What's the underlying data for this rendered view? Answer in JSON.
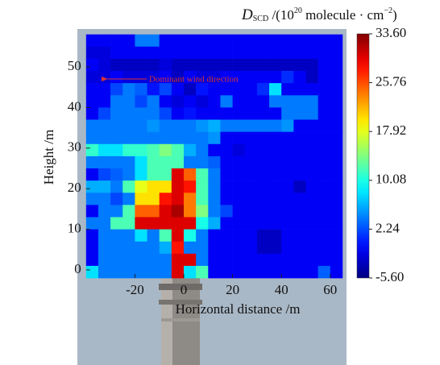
{
  "chart_data": {
    "type": "heatmap",
    "colorbar_label": [
      "D",
      "SCD",
      " /(10",
      "20",
      " molecule · cm",
      "−2",
      ")"
    ],
    "xlabel": "Horizontal distance /m",
    "ylabel": "Height /m",
    "annotation": "Dominant wind direction",
    "colormap": "jet",
    "x": [
      -37.5,
      -32.5,
      -27.5,
      -22.5,
      -17.5,
      -12.5,
      -7.5,
      -2.5,
      2.5,
      7.5,
      12.5,
      17.5,
      22.5,
      27.5,
      32.5,
      37.5,
      42.5,
      47.5,
      52.5,
      57.5,
      62.5
    ],
    "y": [
      56.5,
      53.5,
      50.5,
      47.5,
      44.5,
      41.5,
      38.5,
      35.5,
      32.5,
      29.5,
      26.5,
      23.5,
      20.5,
      17.5,
      14.5,
      11.5,
      8.5,
      5.5,
      2.5,
      -0.5
    ],
    "z": [
      [
        -1,
        -1,
        -1,
        -1,
        4,
        4,
        -1,
        -1,
        -1,
        -1,
        -1,
        -1,
        -1,
        -1,
        -1,
        -1,
        -1,
        -1,
        -1,
        -1,
        -1
      ],
      [
        -2,
        -2,
        -1,
        -1,
        -1,
        -1,
        -1,
        -1,
        -1,
        -1,
        -1,
        -1,
        -1,
        -1,
        -1,
        -1,
        -1,
        -1,
        -1,
        -1,
        -1
      ],
      [
        -1,
        -2,
        -3,
        -3,
        -3,
        -3,
        -2,
        -3,
        -3,
        -3,
        -3,
        -3,
        -3,
        -3,
        -3,
        -3,
        -3,
        -3,
        -3,
        -1,
        -1
      ],
      [
        -2,
        -2,
        -1,
        -2,
        -2,
        -2,
        -1,
        -3,
        -1,
        -2,
        -2,
        -1,
        -1,
        -1,
        -1,
        -1,
        1,
        -1,
        -3,
        -1,
        -1
      ],
      [
        -1,
        -1,
        2,
        4,
        3,
        0,
        2,
        -1,
        -3,
        0,
        -1,
        -1,
        -1,
        -1,
        1,
        8,
        -1,
        -1,
        -1,
        -1,
        -1
      ],
      [
        -1,
        -1,
        4,
        4,
        2,
        4,
        -1,
        -2,
        -1,
        -2,
        -1,
        4,
        -1,
        -1,
        -1,
        4,
        4,
        4,
        4,
        -1,
        -1
      ],
      [
        -1,
        2,
        4,
        4,
        4,
        4,
        2,
        -1,
        0,
        -1,
        -1,
        -1,
        -1,
        -1,
        -1,
        -1,
        4,
        4,
        4,
        -1,
        -1
      ],
      [
        4,
        4,
        4,
        4,
        4,
        5,
        4,
        4,
        4,
        5,
        6,
        4,
        4,
        4,
        4,
        4,
        5,
        -1,
        -1,
        -1,
        -1
      ],
      [
        4,
        4,
        4,
        4,
        4,
        4,
        4,
        4,
        4,
        4,
        5,
        -1,
        -1,
        -1,
        -1,
        -1,
        -1,
        -1,
        -1,
        -1,
        -1
      ],
      [
        11,
        8,
        8,
        11,
        11,
        12,
        14,
        12,
        6,
        4,
        -1,
        -1,
        -2,
        -1,
        -1,
        -1,
        -1,
        -1,
        -1,
        -1,
        -1
      ],
      [
        4,
        4,
        4,
        4,
        8,
        12,
        12,
        12,
        4,
        4,
        3,
        -1,
        -1,
        -1,
        -1,
        -1,
        -1,
        -1,
        -1,
        -1,
        -1
      ],
      [
        -1,
        2,
        3,
        4,
        8,
        12,
        12,
        30,
        25,
        12,
        4,
        -1,
        -1,
        -1,
        -1,
        -1,
        -1,
        -1,
        -1,
        -1,
        -1
      ],
      [
        6,
        6,
        4,
        12,
        18,
        20,
        20,
        30,
        28,
        12,
        4,
        -1,
        -1,
        -1,
        -1,
        -1,
        -1,
        -3,
        -1,
        -1,
        -1
      ],
      [
        4,
        4,
        2,
        4,
        20,
        20,
        28,
        30,
        24,
        12,
        4,
        -1,
        -1,
        -1,
        -1,
        -1,
        -1,
        -1,
        -1,
        -1,
        -1
      ],
      [
        -1,
        4,
        4,
        12,
        25,
        25,
        30,
        32,
        24,
        14,
        4,
        2,
        -1,
        -1,
        -1,
        -1,
        -1,
        -1,
        -1,
        -1,
        -1
      ],
      [
        4,
        4,
        12,
        12,
        30,
        30,
        30,
        30,
        30,
        10,
        6,
        -1,
        -1,
        -1,
        -1,
        -1,
        -1,
        -1,
        -1,
        -1,
        -1
      ],
      [
        -1,
        4,
        4,
        4,
        8,
        4,
        12,
        30,
        10,
        4,
        -1,
        -1,
        -1,
        -1,
        -3,
        -3,
        -1,
        -1,
        -1,
        -1,
        -1
      ],
      [
        -1,
        4,
        4,
        4,
        4,
        4,
        6,
        28,
        4,
        4,
        -1,
        -1,
        -1,
        -1,
        -3,
        -3,
        -1,
        -1,
        -1,
        -1,
        -1
      ],
      [
        -1,
        4,
        4,
        4,
        4,
        4,
        4,
        30,
        30,
        4,
        -1,
        -1,
        -1,
        -1,
        -1,
        -1,
        -1,
        -1,
        -1,
        -1,
        -1
      ],
      [
        8,
        4,
        4,
        4,
        4,
        4,
        4,
        30,
        8,
        12,
        -1,
        -1,
        -1,
        -1,
        -1,
        -1,
        -1,
        -1,
        -1,
        3,
        -1
      ]
    ],
    "xlim": [
      -40,
      65
    ],
    "ylim": [
      -2,
      58
    ],
    "xticks": [
      -20,
      0,
      20,
      40,
      60
    ],
    "yticks": [
      0,
      10,
      20,
      30,
      40,
      50
    ],
    "zlim": [
      -5.6,
      33.6
    ],
    "zticks": [
      {
        "value": -5.6,
        "label": "-5.60"
      },
      2.24,
      10.08,
      17.92,
      25.76,
      {
        "value": 33.6,
        "label": "33.60"
      }
    ]
  }
}
